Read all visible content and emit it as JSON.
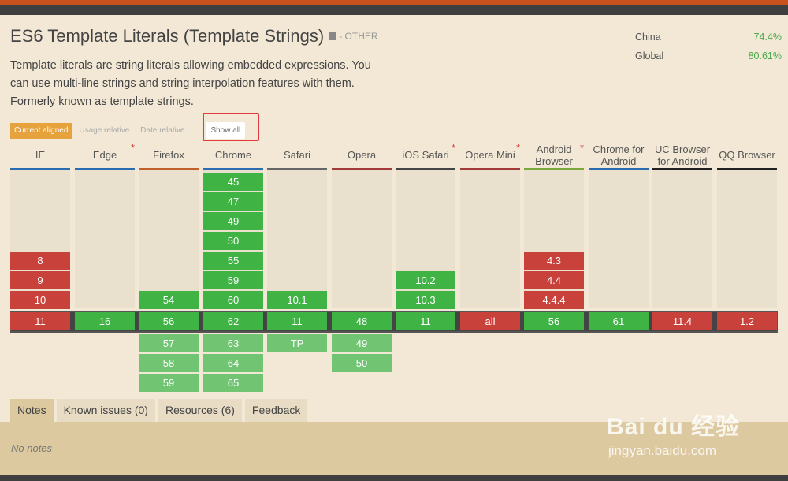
{
  "feature": {
    "title": "ES6 Template Literals (Template Strings)",
    "category": "- OTHER",
    "description": "Template literals are string literals allowing embedded expressions. You can use multi-line strings and string interpolation features with them. Formerly known as template strings."
  },
  "usage": [
    {
      "label": "China",
      "value": "74.4%"
    },
    {
      "label": "Global",
      "value": "80.61%"
    }
  ],
  "view_tabs": {
    "current_aligned": "Current aligned",
    "usage_relative": "Usage relative",
    "date_relative": "Date relative",
    "show_all": "Show all"
  },
  "browsers": [
    {
      "name": "IE",
      "star": "",
      "color": "#2b6cb0",
      "past": [
        {
          "v": "8",
          "s": "red"
        },
        {
          "v": "9",
          "s": "red"
        },
        {
          "v": "10",
          "s": "red"
        }
      ],
      "current": {
        "v": "11",
        "s": "red"
      },
      "future": []
    },
    {
      "name": "Edge",
      "star": "*",
      "color": "#2b6cb0",
      "past": [],
      "current": {
        "v": "16",
        "s": "green"
      },
      "future": []
    },
    {
      "name": "Firefox",
      "star": "",
      "color": "#c0612b",
      "past": [
        {
          "v": "54",
          "s": "green"
        }
      ],
      "current": {
        "v": "56",
        "s": "green"
      },
      "future": [
        {
          "v": "57",
          "s": "lgreen"
        },
        {
          "v": "58",
          "s": "lgreen"
        },
        {
          "v": "59",
          "s": "lgreen"
        }
      ]
    },
    {
      "name": "Chrome",
      "star": "",
      "color": "#2b6cb0",
      "past": [
        {
          "v": "45",
          "s": "green"
        },
        {
          "v": "47",
          "s": "green"
        },
        {
          "v": "49",
          "s": "green"
        },
        {
          "v": "50",
          "s": "green"
        },
        {
          "v": "55",
          "s": "green"
        },
        {
          "v": "59",
          "s": "green"
        },
        {
          "v": "60",
          "s": "green"
        }
      ],
      "current": {
        "v": "62",
        "s": "green"
      },
      "future": [
        {
          "v": "63",
          "s": "lgreen"
        },
        {
          "v": "64",
          "s": "lgreen"
        },
        {
          "v": "65",
          "s": "lgreen"
        }
      ]
    },
    {
      "name": "Safari",
      "star": "",
      "color": "#666666",
      "past": [
        {
          "v": "10.1",
          "s": "green"
        }
      ],
      "current": {
        "v": "11",
        "s": "green"
      },
      "future": [
        {
          "v": "TP",
          "s": "lgreen"
        }
      ]
    },
    {
      "name": "Opera",
      "star": "",
      "color": "#a33a3a",
      "past": [],
      "current": {
        "v": "48",
        "s": "green"
      },
      "future": [
        {
          "v": "49",
          "s": "lgreen"
        },
        {
          "v": "50",
          "s": "lgreen"
        }
      ]
    },
    {
      "name": "iOS Safari",
      "star": "*",
      "color": "#444444",
      "past": [
        {
          "v": "10.2",
          "s": "green"
        },
        {
          "v": "10.3",
          "s": "green"
        }
      ],
      "current": {
        "v": "11",
        "s": "green"
      },
      "future": []
    },
    {
      "name": "Opera Mini",
      "star": "*",
      "color": "#a33a3a",
      "past": [],
      "current": {
        "v": "all",
        "s": "red"
      },
      "future": []
    },
    {
      "name": "Android Browser",
      "star": "*",
      "color": "#7aa83a",
      "past": [
        {
          "v": "4.3",
          "s": "red"
        },
        {
          "v": "4.4",
          "s": "red"
        },
        {
          "v": "4.4.4",
          "s": "red"
        }
      ],
      "current": {
        "v": "56",
        "s": "green"
      },
      "future": []
    },
    {
      "name": "Chrome for Android",
      "star": "",
      "color": "#2b6cb0",
      "past": [],
      "current": {
        "v": "61",
        "s": "green"
      },
      "future": []
    },
    {
      "name": "UC Browser for Android",
      "star": "",
      "color": "#222222",
      "past": [],
      "current": {
        "v": "11.4",
        "s": "red"
      },
      "future": []
    },
    {
      "name": "QQ Browser",
      "star": "",
      "color": "#222222",
      "past": [],
      "current": {
        "v": "1.2",
        "s": "red"
      },
      "future": []
    }
  ],
  "notes_tabs": [
    "Notes",
    "Known issues (0)",
    "Resources (6)",
    "Feedback"
  ],
  "notes_text": "No notes",
  "watermark": {
    "main": "Bai du 经验",
    "sub": "jingyan.baidu.com"
  }
}
